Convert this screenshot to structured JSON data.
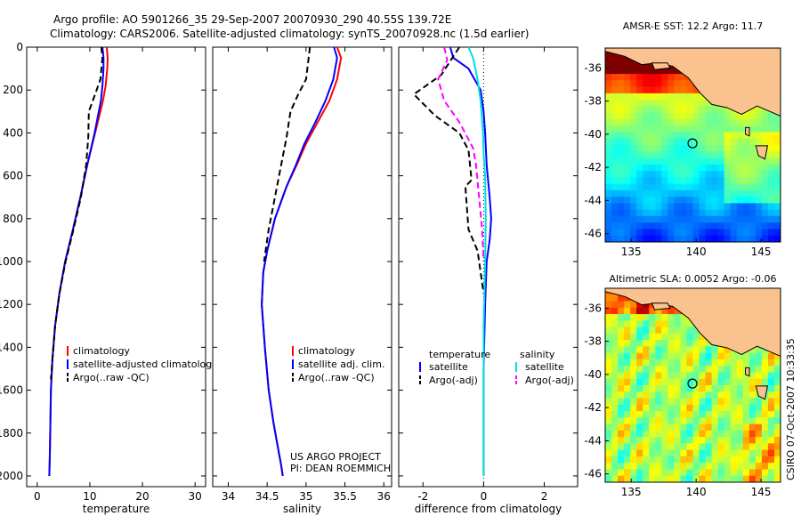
{
  "header": {
    "line1": "Argo profile: AO 5901266_35 29-Sep-2007 20070930_290 40.55S 139.72E",
    "line2": "Climatology: CARS2006. Satellite-adjusted climatology: synTS_20070928.nc (1.5d earlier)"
  },
  "side_stamp": "CSIRO 07-Oct-2007 10:33:35",
  "project_credit": {
    "line1": "US ARGO PROJECT",
    "line2": "PI: DEAN ROEMMICH"
  },
  "colors": {
    "climatology": "#ff0000",
    "satellite": "#0000ff",
    "argo": "#000000",
    "sal_satellite": "#00e0e0",
    "sal_argo": "#ff00ff",
    "land": "#f9c28f"
  },
  "chart_data": [
    {
      "id": "temperature",
      "type": "line",
      "xlabel": "temperature",
      "ylabel": "",
      "xlim": [
        -2,
        32
      ],
      "ylim": [
        2050,
        0
      ],
      "xticks": [
        0,
        10,
        20,
        30
      ],
      "yticks": [
        0,
        200,
        400,
        600,
        800,
        1000,
        1200,
        1400,
        1600,
        1800,
        2000
      ],
      "legend": [
        "climatology",
        "satellite-adjusted climatology",
        "Argo(..raw -QC)"
      ],
      "legend_placement": "lower-middle",
      "series": [
        {
          "name": "climatology",
          "color": "#ff0000",
          "dash": "",
          "x": [
            13.2,
            13.4,
            13.3,
            13.0,
            12.5,
            11.0,
            9.5,
            8.2,
            6.8,
            5.3,
            4.2,
            3.4,
            2.9,
            2.6,
            2.5,
            2.4,
            2.3
          ],
          "y": [
            0,
            50,
            100,
            180,
            250,
            400,
            550,
            700,
            850,
            1000,
            1150,
            1300,
            1450,
            1600,
            1750,
            1900,
            2000
          ]
        },
        {
          "name": "satellite-adjusted climatology",
          "color": "#0000ff",
          "dash": "",
          "x": [
            12.4,
            12.6,
            12.6,
            12.4,
            12.1,
            10.9,
            9.5,
            8.2,
            6.8,
            5.3,
            4.2,
            3.4,
            2.9,
            2.6,
            2.5,
            2.4,
            2.3
          ],
          "y": [
            0,
            50,
            100,
            180,
            250,
            400,
            550,
            700,
            850,
            1000,
            1150,
            1300,
            1450,
            1600,
            1750,
            1900,
            2000
          ]
        },
        {
          "name": "Argo(..raw -QC)",
          "color": "#000000",
          "dash": "7,4",
          "x": [
            12.2,
            12.4,
            12.0,
            11.0,
            9.8,
            9.7,
            9.3,
            8.3,
            6.9,
            5.4,
            4.2,
            3.4,
            2.9,
            2.6
          ],
          "y": [
            0,
            50,
            150,
            220,
            300,
            420,
            550,
            700,
            850,
            1000,
            1150,
            1300,
            1450,
            1550
          ]
        }
      ]
    },
    {
      "id": "salinity",
      "type": "line",
      "xlabel": "salinity",
      "ylabel": "",
      "xlim": [
        33.8,
        36.1
      ],
      "ylim": [
        2050,
        0
      ],
      "xticks": [
        34,
        34.5,
        35,
        35.5,
        36
      ],
      "legend": [
        "climatology",
        "satellite adj. clim.",
        "Argo(..raw -QC)"
      ],
      "legend_placement": "lower-right",
      "series": [
        {
          "name": "climatology",
          "color": "#ff0000",
          "dash": "",
          "x": [
            35.4,
            35.45,
            35.4,
            35.3,
            35.15,
            35.0,
            34.88,
            34.75,
            34.6,
            34.5,
            34.45,
            34.43,
            34.47,
            34.52,
            34.58,
            34.63,
            34.68,
            34.7
          ],
          "y": [
            0,
            50,
            150,
            250,
            350,
            450,
            550,
            650,
            800,
            950,
            1050,
            1200,
            1400,
            1600,
            1750,
            1850,
            1950,
            2000
          ]
        },
        {
          "name": "satellite adj. clim.",
          "color": "#0000ff",
          "dash": "",
          "x": [
            35.36,
            35.4,
            35.35,
            35.25,
            35.12,
            34.98,
            34.87,
            34.75,
            34.6,
            34.5,
            34.45,
            34.43,
            34.47,
            34.52,
            34.58,
            34.63,
            34.68,
            34.7
          ],
          "y": [
            0,
            50,
            150,
            250,
            350,
            450,
            550,
            650,
            800,
            950,
            1050,
            1200,
            1400,
            1600,
            1750,
            1850,
            1950,
            2000
          ]
        },
        {
          "name": "Argo(..raw -QC)",
          "color": "#000000",
          "dash": "7,4",
          "x": [
            35.05,
            35.03,
            35.0,
            34.9,
            34.8,
            34.75,
            34.68,
            34.6,
            34.52,
            34.46
          ],
          "y": [
            0,
            60,
            150,
            220,
            300,
            420,
            550,
            700,
            850,
            1000
          ]
        }
      ]
    },
    {
      "id": "difference",
      "type": "line",
      "xlabel": "difference from climatology",
      "ylabel": "",
      "xlim": [
        -2.8,
        3.1
      ],
      "ylim": [
        2050,
        0
      ],
      "xticks": [
        -2,
        0,
        2
      ],
      "legend": [
        "temperature",
        "satellite",
        "Argo(-adj)",
        "salinity",
        "satellite",
        "Argo(-adj)"
      ],
      "legend_placement": "lower-middle",
      "series": [
        {
          "name": "satellite",
          "group": "temperature",
          "color": "#0000ff",
          "dash": "",
          "x": [
            -1.1,
            -1.0,
            -0.5,
            -0.1,
            0.0,
            0.05,
            0.1,
            0.2,
            0.25,
            0.2,
            0.1,
            0.05,
            0.0,
            0.0,
            0.0
          ],
          "y": [
            0,
            50,
            100,
            200,
            300,
            400,
            550,
            700,
            800,
            900,
            1000,
            1200,
            1500,
            1800,
            2000
          ]
        },
        {
          "name": "Argo(-adj)",
          "group": "temperature",
          "color": "#000000",
          "dash": "7,4",
          "x": [
            -0.8,
            -1.4,
            -2.3,
            -1.6,
            -0.8,
            -0.5,
            -0.4,
            -0.6,
            -0.5,
            -0.2,
            -0.1,
            0.0
          ],
          "y": [
            0,
            130,
            220,
            320,
            400,
            480,
            620,
            650,
            850,
            950,
            1050,
            1150
          ]
        },
        {
          "name": "satellite",
          "group": "salinity",
          "color": "#00e0e0",
          "dash": "",
          "x": [
            -0.5,
            -0.35,
            -0.2,
            -0.1,
            -0.02,
            0.0,
            0.05,
            0.07,
            0.05,
            0.0,
            0.0,
            0.0
          ],
          "y": [
            0,
            50,
            150,
            250,
            400,
            500,
            600,
            800,
            1000,
            1300,
            1700,
            2000
          ]
        },
        {
          "name": "Argo(-adj)",
          "group": "salinity",
          "color": "#ff00ff",
          "dash": "7,4",
          "x": [
            -1.3,
            -1.2,
            -1.5,
            -1.3,
            -0.8,
            -0.35,
            -0.25,
            -0.15,
            -0.05,
            0.0
          ],
          "y": [
            0,
            60,
            150,
            250,
            350,
            470,
            550,
            700,
            850,
            1000
          ]
        }
      ]
    },
    {
      "id": "sst_map",
      "type": "heatmap",
      "title": "AMSR-E SST: 12.2 Argo: 11.7",
      "xlim": [
        133,
        146.5
      ],
      "ylim": [
        -46.5,
        -34.8
      ],
      "xticks": [
        135,
        140,
        145
      ],
      "yticks": [
        -36,
        -38,
        -40,
        -42,
        -44,
        -46
      ],
      "marker": {
        "lon": 139.72,
        "lat": -40.55
      }
    },
    {
      "id": "sla_map",
      "type": "heatmap",
      "title": "Altimetric SLA: 0.0052 Argo: -0.06",
      "xlim": [
        133,
        146.5
      ],
      "ylim": [
        -46.5,
        -34.8
      ],
      "xticks": [
        135,
        140,
        145
      ],
      "yticks": [
        -36,
        -38,
        -40,
        -42,
        -44,
        -46
      ],
      "marker": {
        "lon": 139.72,
        "lat": -40.55
      }
    }
  ]
}
